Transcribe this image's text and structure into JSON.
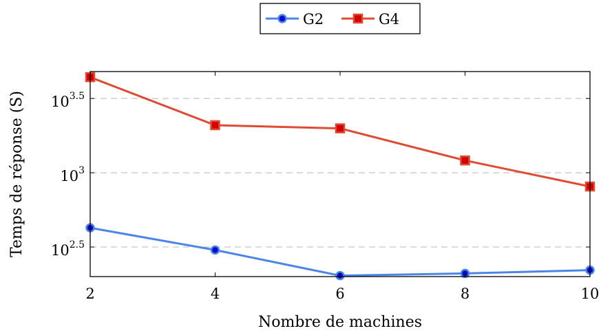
{
  "chart_data": {
    "type": "line",
    "title": "",
    "xlabel": "Nombre de machines",
    "ylabel": "Temps de réponse (S)",
    "yscale": "log10",
    "x": [
      2,
      4,
      6,
      8,
      10
    ],
    "xlim": [
      2,
      10
    ],
    "ylim": [
      200,
      4800
    ],
    "x_ticks": [
      "2",
      "4",
      "6",
      "8",
      "10"
    ],
    "y_ticks": [
      {
        "value": 316.23,
        "base": "10",
        "exponent": "2.5"
      },
      {
        "value": 1000,
        "base": "10",
        "exponent": "3"
      },
      {
        "value": 3162.28,
        "base": "10",
        "exponent": "3.5"
      }
    ],
    "grid": "horizontal dashed",
    "legend_position": "top-center",
    "series": [
      {
        "name": "G2",
        "color": "#4a86e8",
        "marker_color": "#0a0ad0",
        "marker": "circle",
        "values": [
          426,
          302,
          203,
          210,
          221
        ]
      },
      {
        "name": "G4",
        "color": "#e04a32",
        "marker_color": "#d40000",
        "marker": "square",
        "values": [
          4400,
          2090,
          1990,
          1210,
          808
        ]
      }
    ]
  }
}
